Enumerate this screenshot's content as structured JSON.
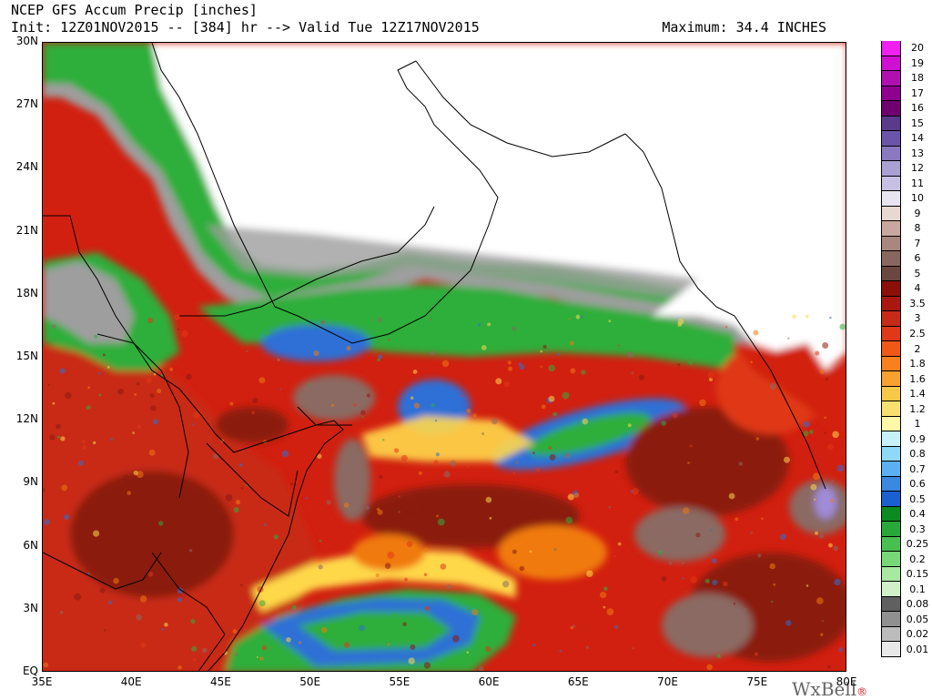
{
  "header": {
    "title": "NCEP GFS Accum Precip [inches]",
    "init_line": "Init: 12Z01NOV2015 -- [384] hr --> Valid Tue 12Z17NOV2015",
    "maximum": "Maximum: 34.4 INCHES"
  },
  "map": {
    "lat_labels": [
      "30N",
      "27N",
      "24N",
      "21N",
      "18N",
      "15N",
      "12N",
      "9N",
      "6N",
      "3N",
      "EQ"
    ],
    "lon_labels": [
      "35E",
      "40E",
      "45E",
      "50E",
      "55E",
      "60E",
      "65E",
      "70E",
      "75E",
      "80E"
    ],
    "regions": {
      "land": "#ffffff",
      "light_precip": "#9e9e9e",
      "green": "#2fae3a",
      "blue": "#2d6fd6",
      "yellow": "#ffd84a",
      "orange": "#f07a10",
      "red": "#d22010",
      "dark_red": "#8b1a10",
      "brown": "#8a6b62",
      "purple": "#a08bd8"
    }
  },
  "colorbar": {
    "labels": [
      "20",
      "19",
      "18",
      "17",
      "16",
      "15",
      "14",
      "13",
      "12",
      "11",
      "10",
      "9",
      "8",
      "7",
      "6",
      "5",
      "4",
      "3.5",
      "3",
      "2.5",
      "2",
      "1.8",
      "1.6",
      "1.4",
      "1.2",
      "1",
      "0.9",
      "0.8",
      "0.7",
      "0.6",
      "0.5",
      "0.4",
      "0.3",
      "0.25",
      "0.2",
      "0.15",
      "0.1",
      "0.08",
      "0.05",
      "0.02",
      "0.01"
    ],
    "colors": [
      "#f020f0",
      "#d010d0",
      "#b010b0",
      "#900090",
      "#700070",
      "#5a3a8a",
      "#6a55a8",
      "#8a78c0",
      "#aaa0d4",
      "#c8c0e2",
      "#e8e4f0",
      "#e8d8d2",
      "#c8a89e",
      "#a8887e",
      "#88685e",
      "#6a4840",
      "#8b1008",
      "#a81810",
      "#c82a18",
      "#e03818",
      "#f05818",
      "#f88020",
      "#f8a030",
      "#f8c848",
      "#f8e070",
      "#fff8a8",
      "#c8f0f8",
      "#90d8f8",
      "#5ab0f0",
      "#3a88e0",
      "#1a60d0",
      "#0a8a20",
      "#28a838",
      "#48c050",
      "#78d878",
      "#a8e8a0",
      "#d0f0c8",
      "#606060",
      "#909090",
      "#bcbcbc",
      "#e8e8e8"
    ]
  },
  "logo": {
    "text": "WxBell",
    "mark": "®"
  }
}
